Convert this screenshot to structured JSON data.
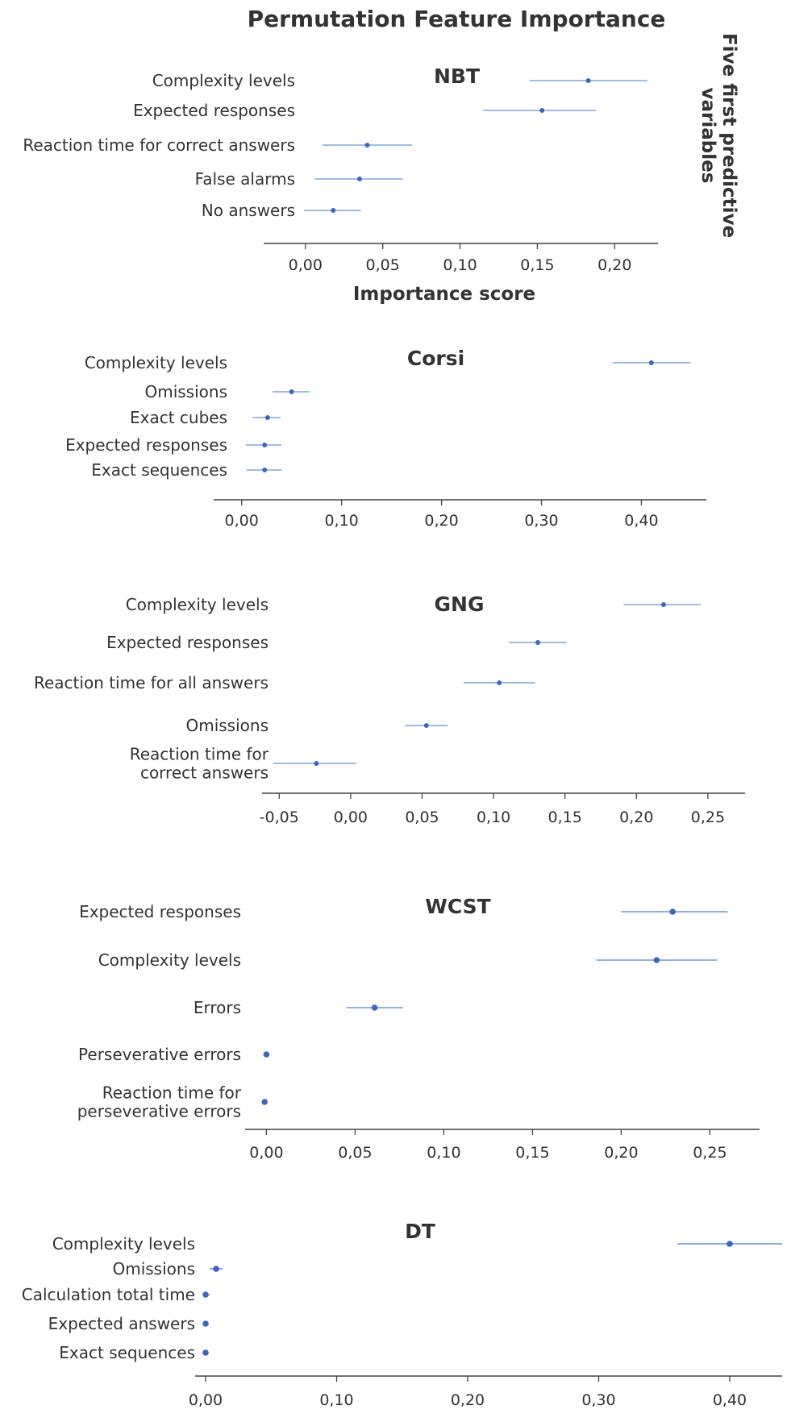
{
  "figure": {
    "title": "Permutation Feature Importance",
    "side_label_lines": [
      "Five first predictive",
      "variables"
    ],
    "xlabel": "Importance score"
  },
  "colors": {
    "line": "#7fa6dd",
    "point": "#3a66c4",
    "text": "#333333",
    "axis": "#444444"
  },
  "chart_data": [
    {
      "type": "scatter",
      "title": "NBT",
      "xlim": [
        -0.027,
        0.228
      ],
      "ticks": [
        0.0,
        0.05,
        0.1,
        0.15,
        0.2
      ],
      "tick_labels": [
        "0,00",
        "0,05",
        "0,10",
        "0,15",
        "0,20"
      ],
      "items": [
        {
          "label": [
            "Complexity levels"
          ],
          "value": 0.183,
          "low": 0.145,
          "high": 0.221
        },
        {
          "label": [
            "Expected responses"
          ],
          "value": 0.153,
          "low": 0.115,
          "high": 0.188
        },
        {
          "label": [
            "Reaction time for correct answers"
          ],
          "value": 0.04,
          "low": 0.011,
          "high": 0.069
        },
        {
          "label": [
            "False alarms"
          ],
          "value": 0.035,
          "low": 0.006,
          "high": 0.063
        },
        {
          "label": [
            "No answers"
          ],
          "value": 0.018,
          "low": -0.001,
          "high": 0.036
        }
      ]
    },
    {
      "type": "scatter",
      "title": "Corsi",
      "xlim": [
        -0.028,
        0.465
      ],
      "ticks": [
        0.0,
        0.1,
        0.2,
        0.3,
        0.4
      ],
      "tick_labels": [
        "0,00",
        "0,10",
        "0,20",
        "0,30",
        "0,40"
      ],
      "items": [
        {
          "label": [
            "Complexity levels"
          ],
          "value": 0.41,
          "low": 0.371,
          "high": 0.449
        },
        {
          "label": [
            "Omissions"
          ],
          "value": 0.05,
          "low": 0.031,
          "high": 0.068
        },
        {
          "label": [
            "Exact cubes"
          ],
          "value": 0.026,
          "low": 0.011,
          "high": 0.039
        },
        {
          "label": [
            "Expected responses"
          ],
          "value": 0.023,
          "low": 0.004,
          "high": 0.04
        },
        {
          "label": [
            "Exact sequences"
          ],
          "value": 0.023,
          "low": 0.005,
          "high": 0.04
        }
      ]
    },
    {
      "type": "scatter",
      "title": "GNG",
      "xlim": [
        -0.062,
        0.276
      ],
      "ticks": [
        -0.05,
        0.0,
        0.05,
        0.1,
        0.15,
        0.2,
        0.25
      ],
      "tick_labels": [
        "-0,05",
        "0,00",
        "0,05",
        "0,10",
        "0,15",
        "0,20",
        "0,25"
      ],
      "items": [
        {
          "label": [
            "Complexity levels"
          ],
          "value": 0.219,
          "low": 0.191,
          "high": 0.245
        },
        {
          "label": [
            "Expected responses"
          ],
          "value": 0.131,
          "low": 0.111,
          "high": 0.151
        },
        {
          "label": [
            "Reaction time for all answers"
          ],
          "value": 0.104,
          "low": 0.079,
          "high": 0.129
        },
        {
          "label": [
            "Omissions"
          ],
          "value": 0.053,
          "low": 0.038,
          "high": 0.068
        },
        {
          "label": [
            "Reaction time for",
            "correct answers"
          ],
          "value": -0.024,
          "low": -0.054,
          "high": 0.004
        }
      ]
    },
    {
      "type": "scatter",
      "title": "WCST",
      "xlim": [
        -0.012,
        0.278
      ],
      "ticks": [
        0.0,
        0.05,
        0.1,
        0.15,
        0.2,
        0.25
      ],
      "tick_labels": [
        "0,00",
        "0,05",
        "0,10",
        "0,15",
        "0,20",
        "0,25"
      ],
      "items": [
        {
          "label": [
            "Expected responses"
          ],
          "value": 0.229,
          "low": 0.2,
          "high": 0.26
        },
        {
          "label": [
            "Complexity levels"
          ],
          "value": 0.22,
          "low": 0.186,
          "high": 0.254
        },
        {
          "label": [
            "Errors"
          ],
          "value": 0.061,
          "low": 0.045,
          "high": 0.077
        },
        {
          "label": [
            "Perseverative errors"
          ],
          "value": 0.0,
          "low": 0.0,
          "high": 0.0
        },
        {
          "label": [
            "Reaction time for",
            "perseverative errors"
          ],
          "value": -0.001,
          "low": -0.001,
          "high": -0.001
        }
      ]
    },
    {
      "type": "scatter",
      "title": "DT",
      "xlim": [
        -0.008,
        0.44
      ],
      "ticks": [
        0.0,
        0.1,
        0.2,
        0.3,
        0.4
      ],
      "tick_labels": [
        "0,00",
        "0,10",
        "0,20",
        "0,30",
        "0,40"
      ],
      "items": [
        {
          "label": [
            "Complexity levels"
          ],
          "value": 0.4,
          "low": 0.36,
          "high": 0.44
        },
        {
          "label": [
            "Omissions"
          ],
          "value": 0.008,
          "low": 0.003,
          "high": 0.013
        },
        {
          "label": [
            "Calculation total time"
          ],
          "value": 0.0,
          "low": -0.002,
          "high": 0.003
        },
        {
          "label": [
            "Expected answers"
          ],
          "value": 0.0,
          "low": 0.0,
          "high": 0.0
        },
        {
          "label": [
            "Exact sequences"
          ],
          "value": 0.0,
          "low": 0.0,
          "high": 0.0
        }
      ]
    }
  ]
}
